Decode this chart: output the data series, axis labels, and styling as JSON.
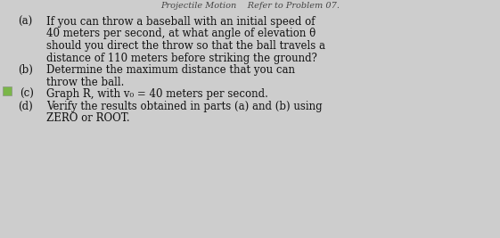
{
  "background_color": "#cdcdcd",
  "top_text": "Projectile Motion    Refer to Problem 07.",
  "lines_a": [
    "If you can throw a baseball with an initial speed of",
    "40 meters per second, at what angle of elevation θ",
    "should you direct the throw so that the ball travels a",
    "distance of 110 meters before striking the ground?"
  ],
  "lines_b": [
    "Determine the maximum distance that you can",
    "throw the ball."
  ],
  "line_c": "Graph R, with v₀ = 40 meters per second.",
  "lines_d": [
    "Verify the results obtained in parts (a) and (b) using",
    "ZERO or ROOT."
  ],
  "icon_color": "#7ab648",
  "font_size": 8.5,
  "label_font_size": 8.5,
  "font_family": "DejaVu Serif",
  "text_color": "#111111",
  "header_color": "#444444",
  "label_a": "(a)",
  "label_b": "(b)",
  "label_c": "(c)",
  "label_d": "(d)"
}
